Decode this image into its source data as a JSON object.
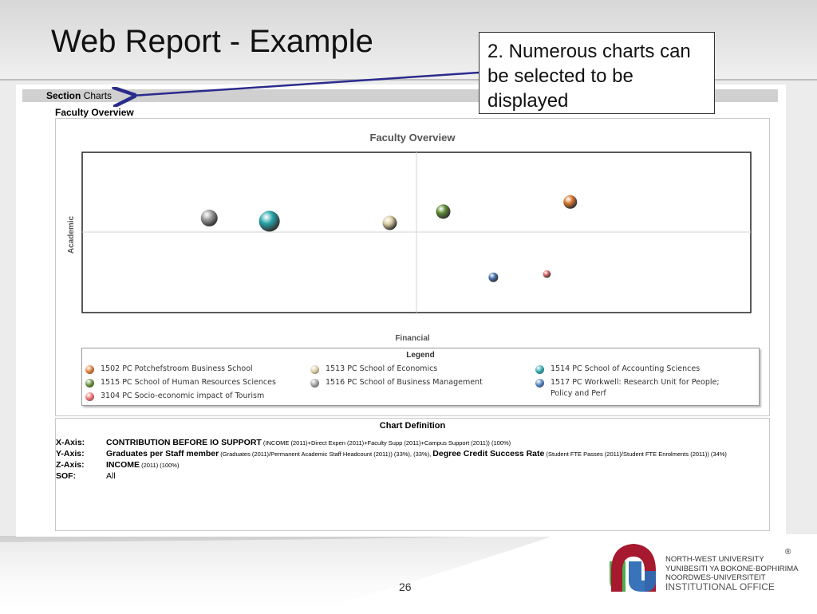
{
  "slide": {
    "title": "Web Report - Example",
    "callout": "2.  Numerous charts can be selected to be displayed",
    "page_number": "26"
  },
  "report": {
    "section_label": "Section",
    "section_value": "Charts",
    "heading": "Faculty Overview"
  },
  "chart_data": {
    "type": "scatter",
    "title": "Faculty Overview",
    "xlabel": "Financial",
    "ylabel": "Academic",
    "legend_title": "Legend",
    "series": [
      {
        "name": "1502 PC Potchefstroom Business School",
        "color": "#d9772f",
        "x": 0.73,
        "y": 0.69,
        "size": 0.55
      },
      {
        "name": "1513 PC School of Economics",
        "color": "#d8caa0",
        "x": 0.46,
        "y": 0.56,
        "size": 0.6
      },
      {
        "name": "1514 PC School of Accounting Sciences",
        "color": "#25a3a8",
        "x": 0.28,
        "y": 0.57,
        "size": 1.0
      },
      {
        "name": "1515 PC School of Human Resources Sciences",
        "color": "#5e8a34",
        "x": 0.54,
        "y": 0.63,
        "size": 0.6
      },
      {
        "name": "1516 PC School of Business Management",
        "color": "#9a9a9a",
        "x": 0.19,
        "y": 0.59,
        "size": 0.75
      },
      {
        "name": "1517 PC Workwell: Research Unit for People; Policy and Perf",
        "color": "#4a78b8",
        "x": 0.615,
        "y": 0.22,
        "size": 0.3
      },
      {
        "name": "3104 PC Socio-economic impact of Tourism",
        "color": "#e86a6a",
        "x": 0.695,
        "y": 0.24,
        "size": 0.18
      }
    ]
  },
  "definition": {
    "title": "Chart Definition",
    "x_key": "X-Axis:",
    "x_main": "CONTRIBUTION BEFORE IO SUPPORT",
    "x_detail": " (INCOME (2011)+Direct Expen (2011)+Faculty Supp (2011)+Campus Support (2011)) (100%)",
    "y_key": "Y-Axis:",
    "y_main": "Graduates per Staff member",
    "y_detail": " (Graduates (2011)/Permanent Academic Staff Headcount (2011)) (33%), (33%), ",
    "y_main2": "Degree Credit Success Rate",
    "y_detail2": " (Student FTE Passes (2011)/Student FTE Enrolments (2011)) (34%)",
    "z_key": "Z-Axis:",
    "z_main": "INCOME",
    "z_detail": " (2011) (100%)",
    "sof_key": "SOF:",
    "sof_value": "All"
  },
  "logo": {
    "line1": "NORTH-WEST UNIVERSITY",
    "line2": "YUNIBESITI YA BOKONE-BOPHIRIMA",
    "line3": "NOORDWES-UNIVERSITEIT",
    "line4": "INSTITUTIONAL OFFICE",
    "registered": "®"
  }
}
